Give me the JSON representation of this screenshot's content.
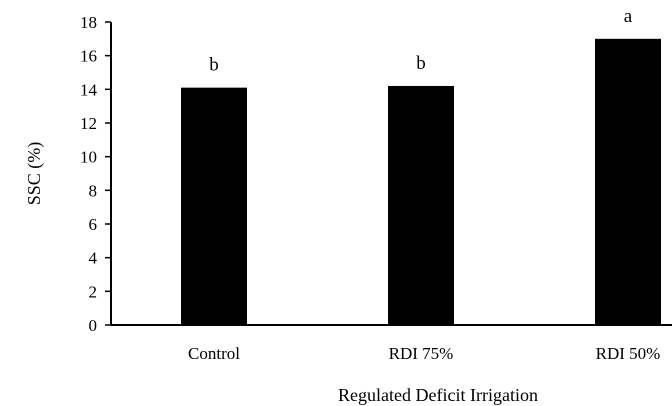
{
  "chart_data": {
    "type": "bar",
    "title": "",
    "xlabel": "Regulated Deficit Irrigation",
    "ylabel": "SSC (%)",
    "ylim": [
      0,
      18
    ],
    "yticks": [
      "0",
      "2",
      "4",
      "6",
      "8",
      "10",
      "12",
      "14",
      "16",
      "18"
    ],
    "categories": [
      "Control",
      "RDI 75%",
      "RDI 50%"
    ],
    "values": [
      14.1,
      14.2,
      17.0
    ],
    "significance_letters": [
      "b",
      "b",
      "a"
    ],
    "bar_color": "#000000",
    "grid": false,
    "legend": "none"
  }
}
